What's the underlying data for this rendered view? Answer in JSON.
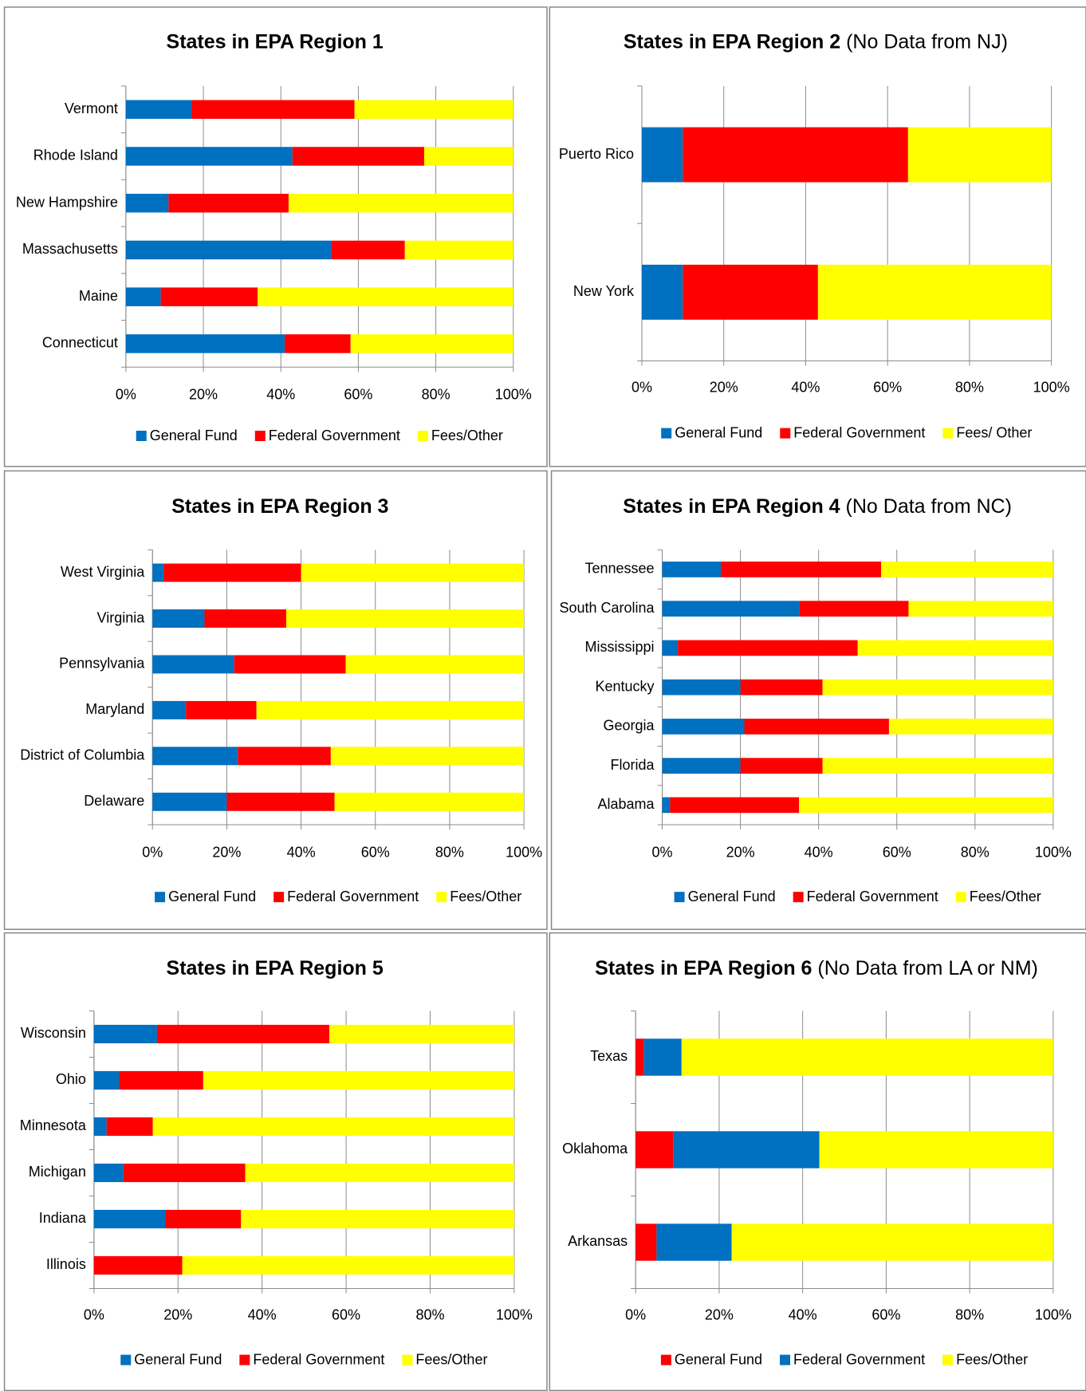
{
  "chart_data": [
    {
      "type": "bar",
      "orientation": "horizontal",
      "stacked": true,
      "title": "States in EPA Region 1",
      "categories": [
        "Vermont",
        "Rhode Island",
        "New Hampshire",
        "Massachusetts",
        "Maine",
        "Connecticut"
      ],
      "series": [
        {
          "name": "General Fund",
          "color": "#0070c0",
          "values": [
            17,
            43,
            11,
            53,
            9,
            41
          ]
        },
        {
          "name": "Federal Government",
          "color": "#ff0000",
          "values": [
            42,
            34,
            31,
            19,
            25,
            17
          ]
        },
        {
          "name": "Fees/Other",
          "color": "#ffff00",
          "values": [
            41,
            23,
            58,
            28,
            66,
            42
          ]
        }
      ],
      "xlim": [
        0,
        100
      ],
      "xticks": [
        {
          "value": 0,
          "label": "0%"
        },
        {
          "value": 20,
          "label": "20%"
        },
        {
          "value": 40,
          "label": "40%"
        },
        {
          "value": 60,
          "label": "60%"
        },
        {
          "value": 80,
          "label": "80%"
        },
        {
          "value": 100,
          "label": "100%"
        }
      ],
      "grid": true,
      "legend": "bottom"
    },
    {
      "type": "bar",
      "orientation": "horizontal",
      "stacked": true,
      "title": "States in EPA Region 2",
      "title_note": "(No Data from NJ)",
      "categories": [
        "Puerto Rico",
        "New York"
      ],
      "series": [
        {
          "name": "General Fund",
          "color": "#0070c0",
          "values": [
            10,
            10
          ]
        },
        {
          "name": "Federal Government",
          "color": "#ff0000",
          "values": [
            55,
            33
          ]
        },
        {
          "name": "Fees/ Other",
          "color": "#ffff00",
          "values": [
            35,
            57
          ]
        }
      ],
      "xlim": [
        0,
        100
      ],
      "xticks": [
        {
          "value": 0,
          "label": "0%"
        },
        {
          "value": 20,
          "label": "20%"
        },
        {
          "value": 40,
          "label": "40%"
        },
        {
          "value": 60,
          "label": "60%"
        },
        {
          "value": 80,
          "label": "80%"
        },
        {
          "value": 100,
          "label": "100%"
        }
      ],
      "grid": true,
      "legend": "bottom"
    },
    {
      "type": "bar",
      "orientation": "horizontal",
      "stacked": true,
      "title": "States in EPA Region 3",
      "categories": [
        "West Virginia",
        "Virginia",
        "Pennsylvania",
        "Maryland",
        "District of Columbia",
        "Delaware"
      ],
      "series": [
        {
          "name": "General Fund",
          "color": "#0070c0",
          "values": [
            3,
            14,
            22,
            9,
            23,
            20
          ]
        },
        {
          "name": "Federal Government",
          "color": "#ff0000",
          "values": [
            37,
            22,
            30,
            19,
            25,
            29
          ]
        },
        {
          "name": "Fees/Other",
          "color": "#ffff00",
          "values": [
            60,
            64,
            48,
            72,
            52,
            51
          ]
        }
      ],
      "xlim": [
        0,
        100
      ],
      "xticks": [
        {
          "value": 0,
          "label": "0%"
        },
        {
          "value": 20,
          "label": "20%"
        },
        {
          "value": 40,
          "label": "40%"
        },
        {
          "value": 60,
          "label": "60%"
        },
        {
          "value": 80,
          "label": "80%"
        },
        {
          "value": 100,
          "label": "100%"
        }
      ],
      "grid": true,
      "legend": "bottom"
    },
    {
      "type": "bar",
      "orientation": "horizontal",
      "stacked": true,
      "title": "States in EPA Region 4",
      "title_note": "(No Data from NC)",
      "categories": [
        "Tennessee",
        "South Carolina",
        "Mississippi",
        "Kentucky",
        "Georgia",
        "Florida",
        "Alabama"
      ],
      "series": [
        {
          "name": "General Fund",
          "color": "#0070c0",
          "values": [
            15,
            35,
            4,
            20,
            21,
            20,
            2
          ]
        },
        {
          "name": "Federal Government",
          "color": "#ff0000",
          "values": [
            41,
            28,
            46,
            21,
            37,
            21,
            33
          ]
        },
        {
          "name": "Fees/Other",
          "color": "#ffff00",
          "values": [
            44,
            37,
            50,
            59,
            42,
            59,
            65
          ]
        }
      ],
      "xlim": [
        0,
        100
      ],
      "xticks": [
        {
          "value": 0,
          "label": "0%"
        },
        {
          "value": 20,
          "label": "20%"
        },
        {
          "value": 40,
          "label": "40%"
        },
        {
          "value": 60,
          "label": "60%"
        },
        {
          "value": 80,
          "label": "80%"
        },
        {
          "value": 100,
          "label": "100%"
        }
      ],
      "grid": true,
      "legend": "bottom"
    },
    {
      "type": "bar",
      "orientation": "horizontal",
      "stacked": true,
      "title": "States in EPA Region 5",
      "categories": [
        "Wisconsin",
        "Ohio",
        "Minnesota",
        "Michigan",
        "Indiana",
        "Illinois"
      ],
      "series": [
        {
          "name": "General Fund",
          "color": "#0070c0",
          "values": [
            15,
            6,
            3,
            7,
            17,
            0
          ]
        },
        {
          "name": "Federal Government",
          "color": "#ff0000",
          "values": [
            41,
            20,
            11,
            29,
            18,
            21
          ]
        },
        {
          "name": "Fees/Other",
          "color": "#ffff00",
          "values": [
            44,
            74,
            86,
            64,
            65,
            79
          ]
        }
      ],
      "xlim": [
        0,
        100
      ],
      "xticks": [
        {
          "value": 0,
          "label": "0%"
        },
        {
          "value": 20,
          "label": "20%"
        },
        {
          "value": 40,
          "label": "40%"
        },
        {
          "value": 60,
          "label": "60%"
        },
        {
          "value": 80,
          "label": "80%"
        },
        {
          "value": 100,
          "label": "100%"
        }
      ],
      "grid": true,
      "legend": "bottom"
    },
    {
      "type": "bar",
      "orientation": "horizontal",
      "stacked": true,
      "title": "States in EPA Region 6",
      "title_note": "(No Data from LA or NM)",
      "categories": [
        "Texas",
        "Oklahoma",
        "Arkansas"
      ],
      "series": [
        {
          "name": "General Fund",
          "color": "#ff0000",
          "values": [
            2,
            9,
            5
          ]
        },
        {
          "name": "Federal Government",
          "color": "#0070c0",
          "values": [
            9,
            35,
            18
          ]
        },
        {
          "name": "Fees/Other",
          "color": "#ffff00",
          "values": [
            89,
            56,
            77
          ]
        }
      ],
      "xlim": [
        0,
        100
      ],
      "xticks": [
        {
          "value": 0,
          "label": "0%"
        },
        {
          "value": 20,
          "label": "20%"
        },
        {
          "value": 40,
          "label": "40%"
        },
        {
          "value": 60,
          "label": "60%"
        },
        {
          "value": 80,
          "label": "80%"
        },
        {
          "value": 100,
          "label": "100%"
        }
      ],
      "grid": true,
      "legend": "bottom"
    }
  ]
}
